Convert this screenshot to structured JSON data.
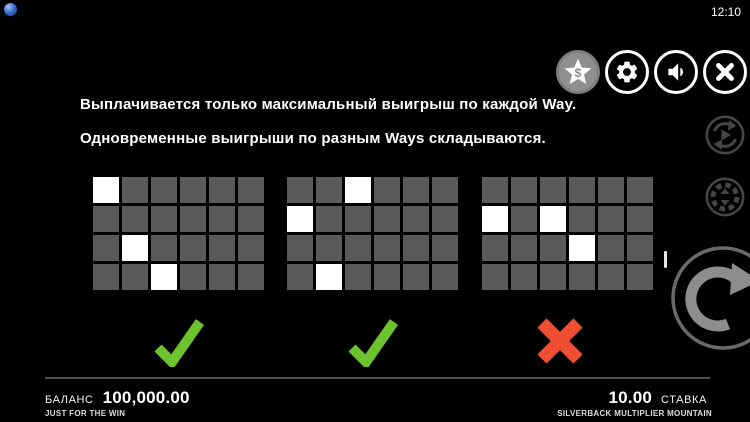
{
  "colors": {
    "background": "#000000",
    "cell": "#5a5a5a",
    "cell_highlight": "#ffffff",
    "valid_green": "#6cc32d",
    "invalid_red": "#f04f33",
    "icon_dim": "#454545",
    "spin_ring": "#6a6a6a",
    "spin_arrow": "#8d8d8d",
    "paytable_circle": "#8f8f8f",
    "divider": "#4f4f4f"
  },
  "status_bar": {
    "time": "12:10",
    "icon": "blue-orb-icon"
  },
  "toolbar": {
    "buttons": [
      {
        "name": "paytable",
        "icon": "star-dollar-icon",
        "label": "$"
      },
      {
        "name": "settings",
        "icon": "gear-icon"
      },
      {
        "name": "sound",
        "icon": "speaker-icon"
      },
      {
        "name": "close",
        "icon": "close-icon"
      }
    ]
  },
  "instructions": {
    "line1": "Выплачивается только максимальный выигрыш по каждой Way.",
    "line2": "Одновременные выигрыши по разным Ways складываются."
  },
  "examples": [
    {
      "grid": {
        "rows": 4,
        "cols": 6,
        "highlighted": [
          [
            0,
            0
          ],
          [
            2,
            1
          ],
          [
            3,
            2
          ]
        ]
      },
      "result": "valid"
    },
    {
      "grid": {
        "rows": 4,
        "cols": 6,
        "highlighted": [
          [
            0,
            2
          ],
          [
            1,
            0
          ],
          [
            3,
            1
          ]
        ]
      },
      "result": "valid"
    },
    {
      "grid": {
        "rows": 4,
        "cols": 6,
        "highlighted": [
          [
            1,
            0
          ],
          [
            1,
            2
          ],
          [
            2,
            3
          ]
        ]
      },
      "result": "invalid"
    }
  ],
  "side_controls": {
    "autoplay": {
      "icon": "autoplay-icon"
    },
    "bet": {
      "icon": "bet-chip-icon"
    },
    "spin": {
      "icon": "spin-arrow-icon"
    },
    "scrollbar": {
      "icon": "scrollbar-thumb"
    }
  },
  "footer": {
    "balance_label": "БАЛАНС",
    "balance_value": "100,000.00",
    "bet_value": "10.00",
    "bet_label": "СТАВКА",
    "provider": "JUST FOR THE WIN",
    "game_title": "SILVERBACK MULTIPLIER MOUNTAIN"
  }
}
